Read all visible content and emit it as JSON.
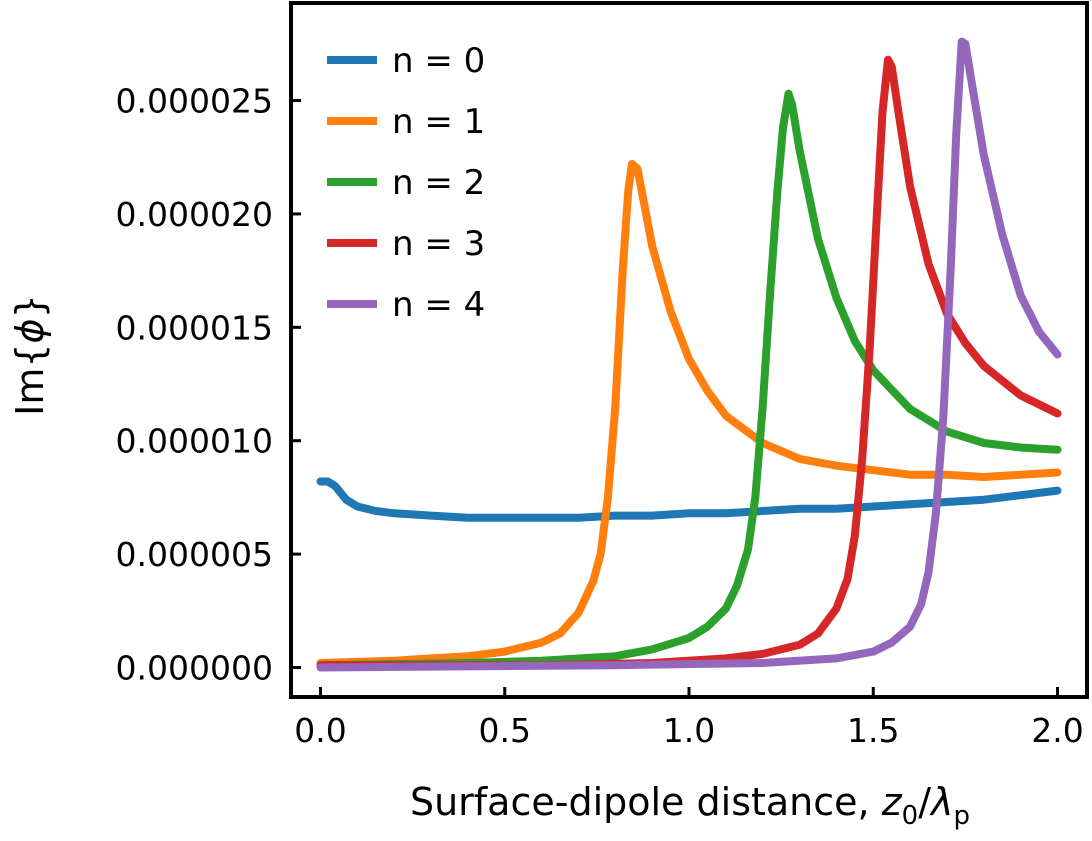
{
  "chart_data": {
    "type": "line",
    "xlabel": "Surface-dipole distance, z0/λp",
    "xlabel_parts": {
      "prefix": "Surface-dipole distance, ",
      "var": "z",
      "var_sub": "0",
      "slash": "/",
      "lambda": "λ",
      "lambda_sub": "p"
    },
    "ylabel": "Im{ϕ}",
    "ylabel_parts": {
      "prefix": "Im{",
      "symbol": "ϕ",
      "suffix": "}"
    },
    "xlim": [
      -0.08,
      2.08
    ],
    "ylim": [
      -1.3e-06,
      2.93e-05
    ],
    "xticks": [
      0.0,
      0.5,
      1.0,
      1.5,
      2.0
    ],
    "xtick_labels": [
      "0.0",
      "0.5",
      "1.0",
      "1.5",
      "2.0"
    ],
    "yticks": [
      0,
      5e-06,
      1e-05,
      1.5e-05,
      2e-05,
      2.5e-05
    ],
    "ytick_labels": [
      "0.000000",
      "0.000005",
      "0.000010",
      "0.000015",
      "0.000020",
      "0.000025"
    ],
    "grid": false,
    "legend_position": "top-left",
    "series": [
      {
        "name": "n = 0",
        "color": "#1f77b4",
        "points": [
          [
            0.0,
            8.2e-06
          ],
          [
            0.02,
            8.2e-06
          ],
          [
            0.04,
            8e-06
          ],
          [
            0.07,
            7.4e-06
          ],
          [
            0.1,
            7.1e-06
          ],
          [
            0.15,
            6.9e-06
          ],
          [
            0.2,
            6.8e-06
          ],
          [
            0.3,
            6.7e-06
          ],
          [
            0.4,
            6.6e-06
          ],
          [
            0.5,
            6.6e-06
          ],
          [
            0.6,
            6.6e-06
          ],
          [
            0.7,
            6.6e-06
          ],
          [
            0.8,
            6.7e-06
          ],
          [
            0.9,
            6.7e-06
          ],
          [
            1.0,
            6.8e-06
          ],
          [
            1.1,
            6.8e-06
          ],
          [
            1.2,
            6.9e-06
          ],
          [
            1.3,
            7e-06
          ],
          [
            1.4,
            7e-06
          ],
          [
            1.5,
            7.1e-06
          ],
          [
            1.6,
            7.2e-06
          ],
          [
            1.7,
            7.3e-06
          ],
          [
            1.8,
            7.4e-06
          ],
          [
            1.9,
            7.6e-06
          ],
          [
            2.0,
            7.8e-06
          ]
        ]
      },
      {
        "name": "n = 1",
        "color": "#ff7f0e",
        "points": [
          [
            0.0,
            2e-07
          ],
          [
            0.2,
            3e-07
          ],
          [
            0.3,
            4e-07
          ],
          [
            0.4,
            5e-07
          ],
          [
            0.5,
            7e-07
          ],
          [
            0.6,
            1.1e-06
          ],
          [
            0.65,
            1.5e-06
          ],
          [
            0.7,
            2.4e-06
          ],
          [
            0.74,
            3.8e-06
          ],
          [
            0.76,
            5e-06
          ],
          [
            0.78,
            7.5e-06
          ],
          [
            0.8,
            1.15e-05
          ],
          [
            0.82,
            1.75e-05
          ],
          [
            0.835,
            2.1e-05
          ],
          [
            0.845,
            2.22e-05
          ],
          [
            0.86,
            2.2e-05
          ],
          [
            0.88,
            2.03e-05
          ],
          [
            0.9,
            1.86e-05
          ],
          [
            0.95,
            1.57e-05
          ],
          [
            1.0,
            1.36e-05
          ],
          [
            1.05,
            1.22e-05
          ],
          [
            1.1,
            1.11e-05
          ],
          [
            1.2,
            9.9e-06
          ],
          [
            1.3,
            9.2e-06
          ],
          [
            1.4,
            8.9e-06
          ],
          [
            1.5,
            8.7e-06
          ],
          [
            1.6,
            8.5e-06
          ],
          [
            1.7,
            8.5e-06
          ],
          [
            1.8,
            8.4e-06
          ],
          [
            1.9,
            8.5e-06
          ],
          [
            2.0,
            8.6e-06
          ]
        ]
      },
      {
        "name": "n = 2",
        "color": "#2ca02c",
        "points": [
          [
            0.0,
            1e-07
          ],
          [
            0.4,
            2e-07
          ],
          [
            0.6,
            3e-07
          ],
          [
            0.8,
            5e-07
          ],
          [
            0.9,
            8e-07
          ],
          [
            1.0,
            1.3e-06
          ],
          [
            1.05,
            1.8e-06
          ],
          [
            1.1,
            2.6e-06
          ],
          [
            1.13,
            3.6e-06
          ],
          [
            1.16,
            5.2e-06
          ],
          [
            1.18,
            7.5e-06
          ],
          [
            1.2,
            1.15e-05
          ],
          [
            1.22,
            1.65e-05
          ],
          [
            1.24,
            2.1e-05
          ],
          [
            1.255,
            2.38e-05
          ],
          [
            1.27,
            2.53e-05
          ],
          [
            1.28,
            2.48e-05
          ],
          [
            1.3,
            2.28e-05
          ],
          [
            1.35,
            1.89e-05
          ],
          [
            1.4,
            1.63e-05
          ],
          [
            1.45,
            1.44e-05
          ],
          [
            1.5,
            1.31e-05
          ],
          [
            1.6,
            1.14e-05
          ],
          [
            1.7,
            1.04e-05
          ],
          [
            1.8,
            9.9e-06
          ],
          [
            1.9,
            9.7e-06
          ],
          [
            2.0,
            9.6e-06
          ]
        ]
      },
      {
        "name": "n = 3",
        "color": "#d62728",
        "points": [
          [
            0.0,
            1e-07
          ],
          [
            0.6,
            1e-07
          ],
          [
            0.9,
            2e-07
          ],
          [
            1.1,
            4e-07
          ],
          [
            1.2,
            6e-07
          ],
          [
            1.3,
            1e-06
          ],
          [
            1.35,
            1.5e-06
          ],
          [
            1.4,
            2.6e-06
          ],
          [
            1.43,
            3.9e-06
          ],
          [
            1.45,
            5.8e-06
          ],
          [
            1.47,
            9.2e-06
          ],
          [
            1.49,
            1.4e-05
          ],
          [
            1.51,
            2e-05
          ],
          [
            1.525,
            2.45e-05
          ],
          [
            1.54,
            2.68e-05
          ],
          [
            1.55,
            2.65e-05
          ],
          [
            1.57,
            2.43e-05
          ],
          [
            1.6,
            2.12e-05
          ],
          [
            1.65,
            1.78e-05
          ],
          [
            1.7,
            1.56e-05
          ],
          [
            1.75,
            1.43e-05
          ],
          [
            1.8,
            1.33e-05
          ],
          [
            1.9,
            1.2e-05
          ],
          [
            2.0,
            1.12e-05
          ]
        ]
      },
      {
        "name": "n = 4",
        "color": "#9467bd",
        "points": [
          [
            0.0,
            0.0
          ],
          [
            0.8,
            1e-07
          ],
          [
            1.2,
            2e-07
          ],
          [
            1.4,
            4e-07
          ],
          [
            1.5,
            7e-07
          ],
          [
            1.55,
            1.1e-06
          ],
          [
            1.6,
            1.8e-06
          ],
          [
            1.63,
            2.8e-06
          ],
          [
            1.65,
            4.2e-06
          ],
          [
            1.67,
            6.8e-06
          ],
          [
            1.69,
            1.1e-05
          ],
          [
            1.71,
            1.75e-05
          ],
          [
            1.725,
            2.35e-05
          ],
          [
            1.74,
            2.76e-05
          ],
          [
            1.75,
            2.75e-05
          ],
          [
            1.77,
            2.55e-05
          ],
          [
            1.8,
            2.26e-05
          ],
          [
            1.85,
            1.91e-05
          ],
          [
            1.9,
            1.64e-05
          ],
          [
            1.95,
            1.48e-05
          ],
          [
            2.0,
            1.38e-05
          ]
        ]
      }
    ]
  }
}
